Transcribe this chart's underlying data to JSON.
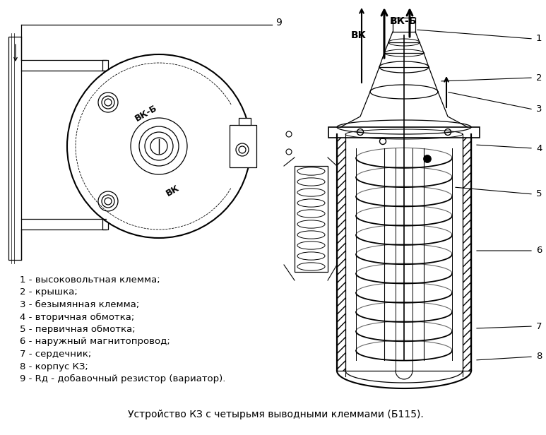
{
  "title": "Устройство КЗ с четырьмя выводными клеммами (Б115).",
  "title_fontsize": 10,
  "bg_color": "#ffffff",
  "legend_items": [
    "1 - высоковольтная клемма;",
    "2 - крышка;",
    "3 - безымянная клемма;",
    "4 - вторичная обмотка;",
    "5 - первичная обмотка;",
    "6 - наружный магнитопровод;",
    "7 - сердечник;",
    "8 - корпус КЗ;",
    "9 - Rд - добавочный резистор (вариатор)."
  ],
  "legend_fontsize": 9.5,
  "line_color": "#000000",
  "label_vk_b": "ВК-Б",
  "label_vk": "ВК"
}
